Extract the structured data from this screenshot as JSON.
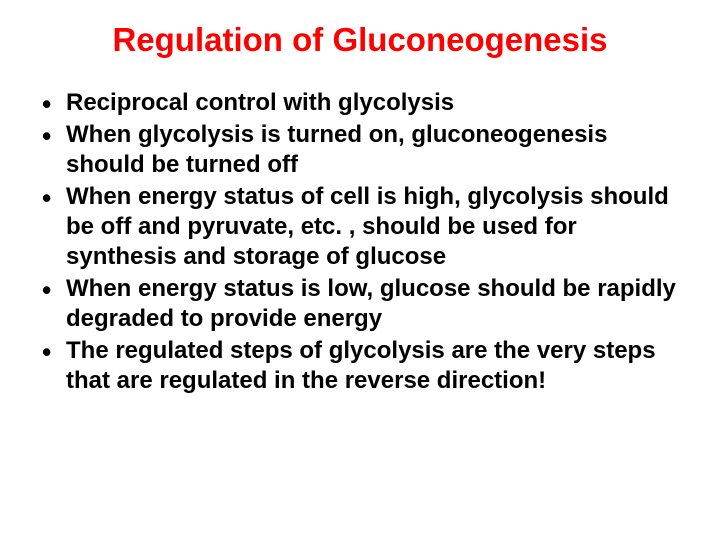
{
  "slide": {
    "title": "Regulation of Gluconeogenesis",
    "title_color": "#ff0000",
    "title_fontsize": 33,
    "body_color": "#000000",
    "body_fontsize": 24,
    "background_color": "#ffffff",
    "bullets": [
      "Reciprocal control with glycolysis",
      "When glycolysis is turned on, gluconeogenesis should be turned off",
      "When energy status of cell is high, glycolysis should be off and pyruvate, etc. , should be used for synthesis and storage of glucose",
      "When energy status is low, glucose should be rapidly degraded to provide energy",
      "The regulated steps of glycolysis are the very steps that are regulated in the reverse direction!"
    ]
  }
}
